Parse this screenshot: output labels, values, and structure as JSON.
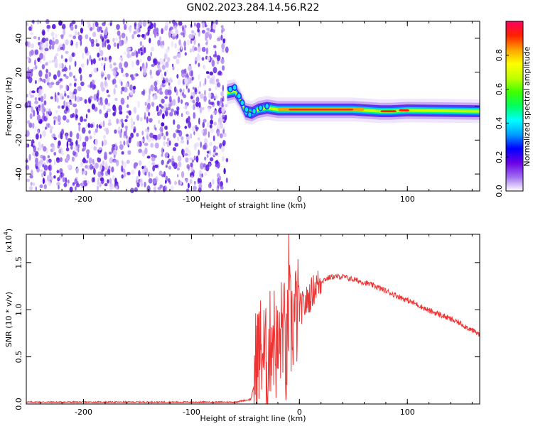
{
  "title": "GN02.2023.284.14.56.R22",
  "chart_data": [
    {
      "type": "heatmap",
      "xlabel": "Height of straight line (km)",
      "ylabel": "Frequency (Hz)",
      "xlim": [
        -253,
        167
      ],
      "ylim": [
        -50,
        50
      ],
      "x_ticks": [
        -200,
        -100,
        0,
        100
      ],
      "y_ticks": [
        -40,
        -20,
        0,
        20,
        40
      ],
      "x_tick_labels": [
        "-200",
        "-100",
        "0",
        "100"
      ],
      "y_tick_labels": [
        "-40",
        "-20",
        "0",
        "20",
        "40"
      ],
      "noise_region_x": [
        -253,
        -67
      ],
      "signal_band": [
        {
          "x": -67,
          "freq": 8
        },
        {
          "x": -60,
          "freq": 9
        },
        {
          "x": -55,
          "freq": 4
        },
        {
          "x": -50,
          "freq": -3
        },
        {
          "x": -44,
          "freq": -4
        },
        {
          "x": -38,
          "freq": -2
        },
        {
          "x": -30,
          "freq": -1
        },
        {
          "x": -20,
          "freq": -2
        },
        {
          "x": 0,
          "freq": -2
        },
        {
          "x": 50,
          "freq": -2
        },
        {
          "x": 75,
          "freq": -3
        },
        {
          "x": 85,
          "freq": -3
        },
        {
          "x": 100,
          "freq": -2.5
        },
        {
          "x": 167,
          "freq": -3
        }
      ],
      "colorbar": {
        "label": "Normalized spectral amplitude",
        "range": [
          0.0,
          1.0
        ],
        "ticks": [
          0.0,
          0.2,
          0.4,
          0.6,
          0.8
        ],
        "tick_labels": [
          "0.0",
          "0.2",
          "0.4",
          "0.6",
          "0.8"
        ],
        "colors": [
          "#ffffff",
          "#9e6cf0",
          "#6a00e6",
          "#0000ff",
          "#00a0ff",
          "#00ffff",
          "#00ff60",
          "#40ff00",
          "#c0ff00",
          "#ffff00",
          "#ffa000",
          "#ff2000",
          "#ff0060"
        ]
      }
    },
    {
      "type": "line",
      "xlabel": "Height of straight line (km)",
      "ylabel": "SNR (10 * v/v)",
      "y_multiplier_label": "(x10",
      "y_multiplier_exp": "4",
      "xlim": [
        -253,
        167
      ],
      "ylim": [
        0,
        1.8
      ],
      "x_ticks": [
        -200,
        -100,
        0,
        100
      ],
      "y_ticks": [
        0.0,
        0.5,
        1.0,
        1.5
      ],
      "x_tick_labels": [
        "-200",
        "-100",
        "0",
        "100"
      ],
      "y_tick_labels": [
        "0.0",
        "0.5",
        "1.0",
        "1.5"
      ],
      "series": [
        {
          "color": "#ee3333",
          "x": [
            -253,
            -200,
            -150,
            -100,
            -60,
            -45,
            -42,
            -40,
            -35,
            -30,
            -25,
            -20,
            -15,
            -12,
            -10,
            -8,
            -5,
            0,
            5,
            10,
            15,
            20,
            25,
            30,
            40,
            50,
            60,
            70,
            80,
            90,
            100,
            110,
            120,
            130,
            140,
            150,
            160,
            167
          ],
          "y": [
            0.02,
            0.02,
            0.02,
            0.02,
            0.02,
            0.05,
            0.2,
            0.5,
            0.6,
            0.4,
            0.8,
            0.5,
            0.9,
            0.4,
            1.0,
            0.8,
            0.9,
            1.0,
            1.05,
            1.15,
            1.25,
            1.3,
            1.33,
            1.35,
            1.35,
            1.32,
            1.29,
            1.25,
            1.2,
            1.15,
            1.1,
            1.05,
            0.99,
            0.95,
            0.9,
            0.85,
            0.78,
            0.74
          ]
        }
      ]
    }
  ]
}
